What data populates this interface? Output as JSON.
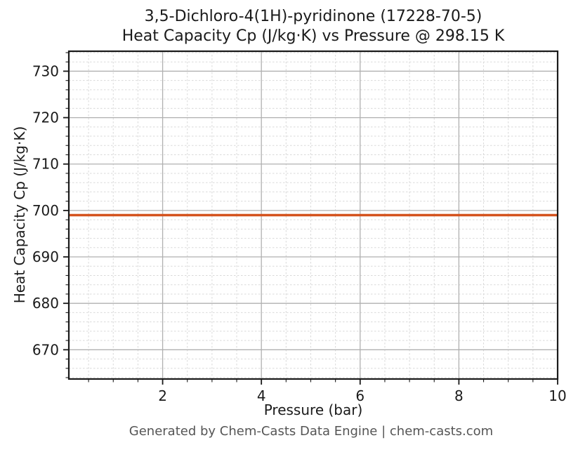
{
  "chart_data": {
    "type": "line",
    "title_line1": "3,5-Dichloro-4(1H)-pyridinone (17228-70-5)",
    "title_line2": "Heat Capacity Cp (J/kg·K) vs Pressure @ 298.15 K",
    "xlabel": "Pressure (bar)",
    "ylabel": "Heat Capacity Cp (J/kg·K)",
    "xlim": [
      0.1,
      10
    ],
    "ylim": [
      663.7,
      734.3
    ],
    "xticks": [
      2,
      4,
      6,
      8,
      10
    ],
    "yticks": [
      670,
      680,
      690,
      700,
      710,
      720,
      730
    ],
    "x_minor_step": 0.5,
    "y_minor_step": 2,
    "grid": {
      "major": true,
      "minor": true,
      "legend": "none"
    },
    "series": [
      {
        "name": "Cp",
        "x": [
          0.1,
          1,
          2,
          3,
          4,
          5,
          6,
          7,
          8,
          9,
          10
        ],
        "y": [
          699,
          699,
          699,
          699,
          699,
          699,
          699,
          699,
          699,
          699,
          699
        ],
        "color": "#d4531e",
        "line_width": 3.5
      }
    ],
    "colors": {
      "major_grid": "#b0b0b0",
      "minor_grid": "#d9d9d9",
      "axis": "#1a1a1a",
      "background": "#ffffff"
    }
  },
  "footer": {
    "text": "Generated by Chem-Casts Data Engine | chem-casts.com"
  }
}
